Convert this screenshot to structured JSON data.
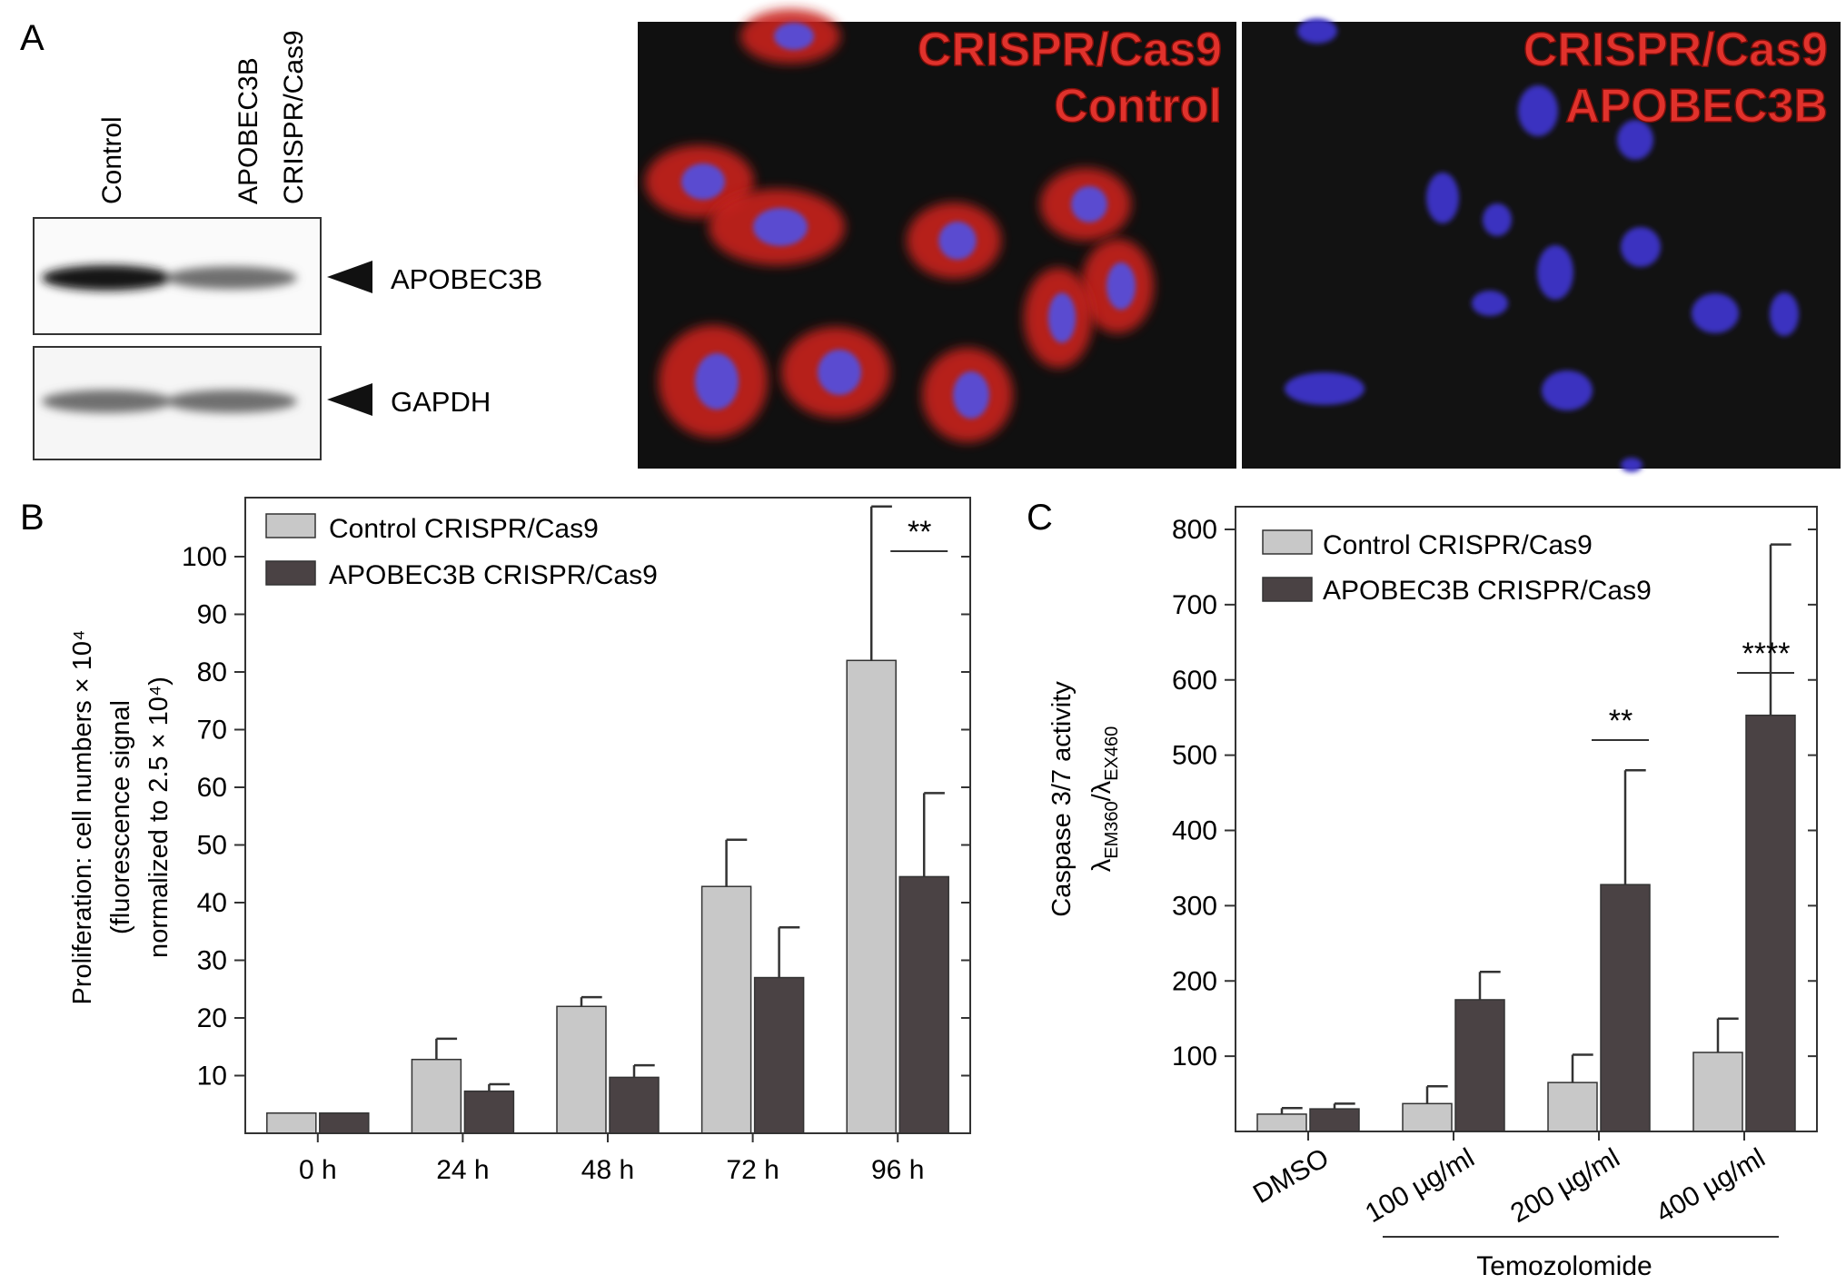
{
  "panel_labels": {
    "a": "A",
    "b": "B",
    "c": "C"
  },
  "western_blot": {
    "lanes": [
      {
        "line1": "Control",
        "line2": ""
      },
      {
        "line1": "APOBEC3B",
        "line2": "CRISPR/Cas9"
      }
    ],
    "bands": [
      {
        "label": "APOBEC3B",
        "intensities": [
          1.0,
          0.55
        ]
      },
      {
        "label": "GAPDH",
        "intensities": [
          0.55,
          0.55
        ]
      }
    ]
  },
  "micrographs": [
    {
      "line1": "CRISPR/Cas9",
      "line2": "Control",
      "stain": "red cytoplasm, blue nuclei"
    },
    {
      "line1": "CRISPR/Cas9",
      "line2": "APOBEC3B",
      "stain": "blue nuclei only"
    }
  ],
  "colors": {
    "control": "#c8c8c8",
    "apobec": "#4a4244",
    "label_red": "#e0322c",
    "bar_edge": "#333333"
  },
  "chart_data": [
    {
      "type": "bar",
      "title": "",
      "categories": [
        "0 h",
        "24 h",
        "48 h",
        "72 h",
        "96 h"
      ],
      "series": [
        {
          "name": "Control CRISPR/Cas9",
          "values": [
            3.5,
            12.8,
            22,
            42.8,
            82
          ],
          "errors": [
            0,
            3.6,
            1.6,
            8.1,
            26.7
          ]
        },
        {
          "name": "APOBEC3B CRISPR/Cas9",
          "values": [
            3.5,
            7.3,
            9.7,
            27,
            44.5
          ],
          "errors": [
            0,
            1.2,
            2.1,
            8.7,
            14.5
          ]
        }
      ],
      "ylabel_lines": [
        "Proliferation: cell numbers × 10⁴",
        "(fluorescence signal",
        "normalized to 2.5 × 10⁴)"
      ],
      "ylim": [
        0,
        110
      ],
      "yticks": [
        10,
        20,
        30,
        40,
        50,
        60,
        70,
        80,
        90,
        100
      ],
      "significance": [
        {
          "label": "**",
          "category_index": 4
        }
      ],
      "legend_position": "top-left",
      "grid": false
    },
    {
      "type": "bar",
      "title": "",
      "categories": [
        "DMSO",
        "100 µg/ml",
        "200 µg/ml",
        "400 µg/ml"
      ],
      "series": [
        {
          "name": "Control CRISPR/Cas9",
          "values": [
            23,
            37,
            65,
            105
          ],
          "errors": [
            8,
            23,
            37,
            45
          ]
        },
        {
          "name": "APOBEC3B CRISPR/Cas9",
          "values": [
            30,
            175,
            328,
            553
          ],
          "errors": [
            7,
            37,
            152,
            227
          ]
        }
      ],
      "ylabel_lines": [
        "Caspase 3/7 activity",
        "λEM360/λEX460"
      ],
      "ylim": [
        0,
        830
      ],
      "yticks": [
        100,
        200,
        300,
        400,
        500,
        600,
        700,
        800
      ],
      "group_label": "Temozolomide",
      "significance": [
        {
          "label": "**",
          "category_index": 2
        },
        {
          "label": "****",
          "category_index": 3
        }
      ],
      "legend_position": "top-left",
      "grid": false
    }
  ]
}
